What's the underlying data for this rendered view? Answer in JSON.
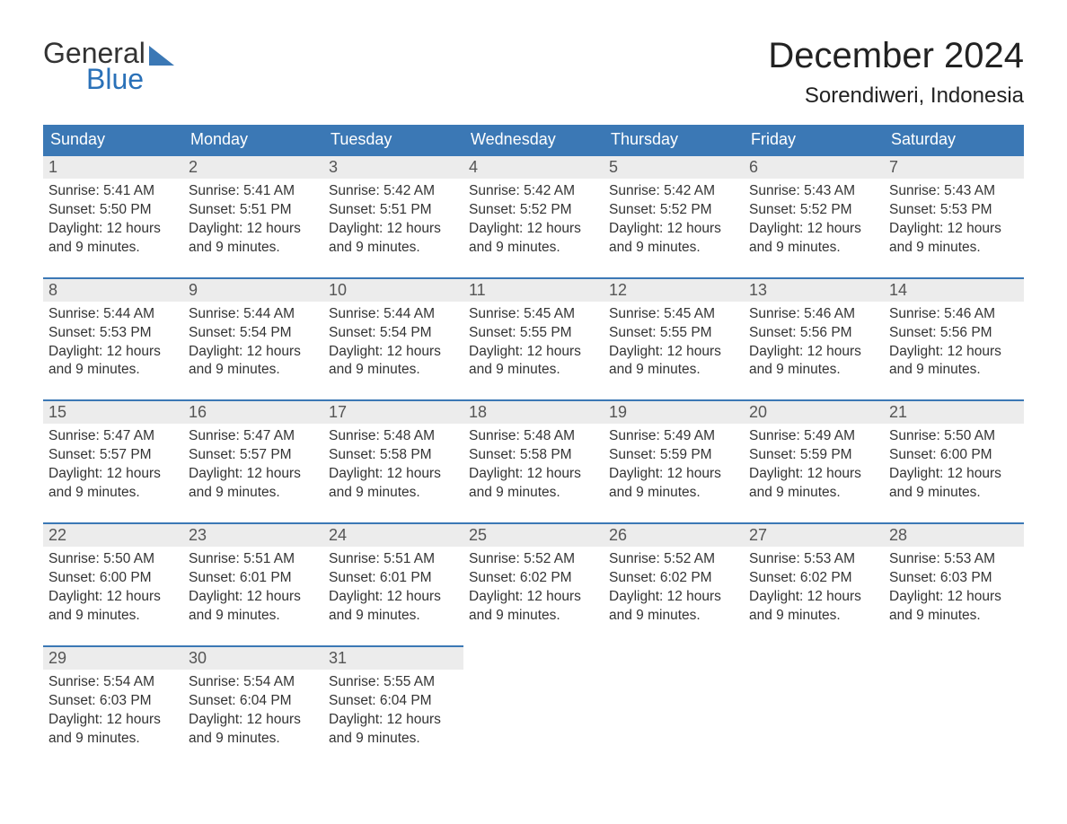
{
  "logo": {
    "word1": "General",
    "word2": "Blue",
    "icon_color": "#3b78b5"
  },
  "title": {
    "month": "December 2024",
    "location": "Sorendiweri, Indonesia"
  },
  "colors": {
    "header_bg": "#3b78b5",
    "header_text": "#ffffff",
    "daynum_bg": "#ececec",
    "daynum_border": "#3b78b5",
    "body_text": "#333333",
    "logo_blue": "#2a71b8"
  },
  "typography": {
    "month_fontsize": 40,
    "location_fontsize": 24,
    "header_fontsize": 18,
    "daynum_fontsize": 18,
    "body_fontsize": 15.5,
    "logo_fontsize": 32
  },
  "days_of_week": [
    "Sunday",
    "Monday",
    "Tuesday",
    "Wednesday",
    "Thursday",
    "Friday",
    "Saturday"
  ],
  "weeks": [
    [
      {
        "num": "1",
        "sunrise": "Sunrise: 5:41 AM",
        "sunset": "Sunset: 5:50 PM",
        "dl1": "Daylight: 12 hours",
        "dl2": "and 9 minutes."
      },
      {
        "num": "2",
        "sunrise": "Sunrise: 5:41 AM",
        "sunset": "Sunset: 5:51 PM",
        "dl1": "Daylight: 12 hours",
        "dl2": "and 9 minutes."
      },
      {
        "num": "3",
        "sunrise": "Sunrise: 5:42 AM",
        "sunset": "Sunset: 5:51 PM",
        "dl1": "Daylight: 12 hours",
        "dl2": "and 9 minutes."
      },
      {
        "num": "4",
        "sunrise": "Sunrise: 5:42 AM",
        "sunset": "Sunset: 5:52 PM",
        "dl1": "Daylight: 12 hours",
        "dl2": "and 9 minutes."
      },
      {
        "num": "5",
        "sunrise": "Sunrise: 5:42 AM",
        "sunset": "Sunset: 5:52 PM",
        "dl1": "Daylight: 12 hours",
        "dl2": "and 9 minutes."
      },
      {
        "num": "6",
        "sunrise": "Sunrise: 5:43 AM",
        "sunset": "Sunset: 5:52 PM",
        "dl1": "Daylight: 12 hours",
        "dl2": "and 9 minutes."
      },
      {
        "num": "7",
        "sunrise": "Sunrise: 5:43 AM",
        "sunset": "Sunset: 5:53 PM",
        "dl1": "Daylight: 12 hours",
        "dl2": "and 9 minutes."
      }
    ],
    [
      {
        "num": "8",
        "sunrise": "Sunrise: 5:44 AM",
        "sunset": "Sunset: 5:53 PM",
        "dl1": "Daylight: 12 hours",
        "dl2": "and 9 minutes."
      },
      {
        "num": "9",
        "sunrise": "Sunrise: 5:44 AM",
        "sunset": "Sunset: 5:54 PM",
        "dl1": "Daylight: 12 hours",
        "dl2": "and 9 minutes."
      },
      {
        "num": "10",
        "sunrise": "Sunrise: 5:44 AM",
        "sunset": "Sunset: 5:54 PM",
        "dl1": "Daylight: 12 hours",
        "dl2": "and 9 minutes."
      },
      {
        "num": "11",
        "sunrise": "Sunrise: 5:45 AM",
        "sunset": "Sunset: 5:55 PM",
        "dl1": "Daylight: 12 hours",
        "dl2": "and 9 minutes."
      },
      {
        "num": "12",
        "sunrise": "Sunrise: 5:45 AM",
        "sunset": "Sunset: 5:55 PM",
        "dl1": "Daylight: 12 hours",
        "dl2": "and 9 minutes."
      },
      {
        "num": "13",
        "sunrise": "Sunrise: 5:46 AM",
        "sunset": "Sunset: 5:56 PM",
        "dl1": "Daylight: 12 hours",
        "dl2": "and 9 minutes."
      },
      {
        "num": "14",
        "sunrise": "Sunrise: 5:46 AM",
        "sunset": "Sunset: 5:56 PM",
        "dl1": "Daylight: 12 hours",
        "dl2": "and 9 minutes."
      }
    ],
    [
      {
        "num": "15",
        "sunrise": "Sunrise: 5:47 AM",
        "sunset": "Sunset: 5:57 PM",
        "dl1": "Daylight: 12 hours",
        "dl2": "and 9 minutes."
      },
      {
        "num": "16",
        "sunrise": "Sunrise: 5:47 AM",
        "sunset": "Sunset: 5:57 PM",
        "dl1": "Daylight: 12 hours",
        "dl2": "and 9 minutes."
      },
      {
        "num": "17",
        "sunrise": "Sunrise: 5:48 AM",
        "sunset": "Sunset: 5:58 PM",
        "dl1": "Daylight: 12 hours",
        "dl2": "and 9 minutes."
      },
      {
        "num": "18",
        "sunrise": "Sunrise: 5:48 AM",
        "sunset": "Sunset: 5:58 PM",
        "dl1": "Daylight: 12 hours",
        "dl2": "and 9 minutes."
      },
      {
        "num": "19",
        "sunrise": "Sunrise: 5:49 AM",
        "sunset": "Sunset: 5:59 PM",
        "dl1": "Daylight: 12 hours",
        "dl2": "and 9 minutes."
      },
      {
        "num": "20",
        "sunrise": "Sunrise: 5:49 AM",
        "sunset": "Sunset: 5:59 PM",
        "dl1": "Daylight: 12 hours",
        "dl2": "and 9 minutes."
      },
      {
        "num": "21",
        "sunrise": "Sunrise: 5:50 AM",
        "sunset": "Sunset: 6:00 PM",
        "dl1": "Daylight: 12 hours",
        "dl2": "and 9 minutes."
      }
    ],
    [
      {
        "num": "22",
        "sunrise": "Sunrise: 5:50 AM",
        "sunset": "Sunset: 6:00 PM",
        "dl1": "Daylight: 12 hours",
        "dl2": "and 9 minutes."
      },
      {
        "num": "23",
        "sunrise": "Sunrise: 5:51 AM",
        "sunset": "Sunset: 6:01 PM",
        "dl1": "Daylight: 12 hours",
        "dl2": "and 9 minutes."
      },
      {
        "num": "24",
        "sunrise": "Sunrise: 5:51 AM",
        "sunset": "Sunset: 6:01 PM",
        "dl1": "Daylight: 12 hours",
        "dl2": "and 9 minutes."
      },
      {
        "num": "25",
        "sunrise": "Sunrise: 5:52 AM",
        "sunset": "Sunset: 6:02 PM",
        "dl1": "Daylight: 12 hours",
        "dl2": "and 9 minutes."
      },
      {
        "num": "26",
        "sunrise": "Sunrise: 5:52 AM",
        "sunset": "Sunset: 6:02 PM",
        "dl1": "Daylight: 12 hours",
        "dl2": "and 9 minutes."
      },
      {
        "num": "27",
        "sunrise": "Sunrise: 5:53 AM",
        "sunset": "Sunset: 6:02 PM",
        "dl1": "Daylight: 12 hours",
        "dl2": "and 9 minutes."
      },
      {
        "num": "28",
        "sunrise": "Sunrise: 5:53 AM",
        "sunset": "Sunset: 6:03 PM",
        "dl1": "Daylight: 12 hours",
        "dl2": "and 9 minutes."
      }
    ],
    [
      {
        "num": "29",
        "sunrise": "Sunrise: 5:54 AM",
        "sunset": "Sunset: 6:03 PM",
        "dl1": "Daylight: 12 hours",
        "dl2": "and 9 minutes."
      },
      {
        "num": "30",
        "sunrise": "Sunrise: 5:54 AM",
        "sunset": "Sunset: 6:04 PM",
        "dl1": "Daylight: 12 hours",
        "dl2": "and 9 minutes."
      },
      {
        "num": "31",
        "sunrise": "Sunrise: 5:55 AM",
        "sunset": "Sunset: 6:04 PM",
        "dl1": "Daylight: 12 hours",
        "dl2": "and 9 minutes."
      },
      null,
      null,
      null,
      null
    ]
  ]
}
